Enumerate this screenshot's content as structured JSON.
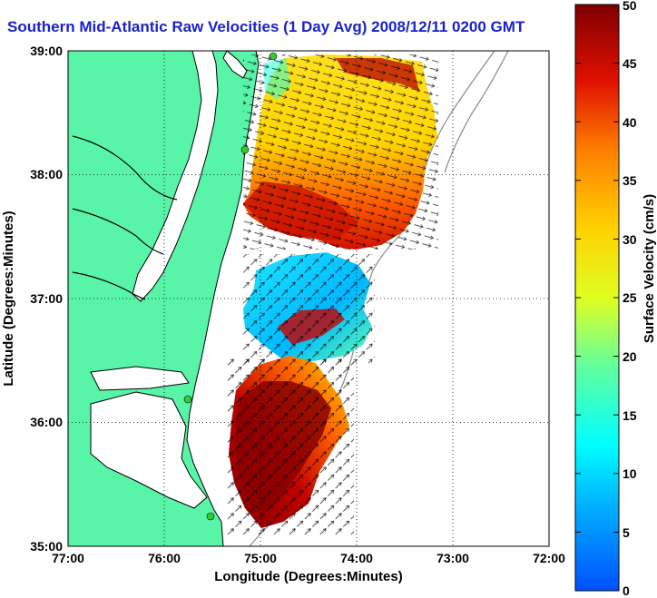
{
  "title": "Southern Mid-Atlantic Raw Velocities (1 Day Avg) 2008/12/11 0200 GMT",
  "xlabel": "Longitude (Degrees:Minutes)",
  "ylabel": "Latitude (Degrees:Minutes)",
  "colorbar_label": "Surface Velocity (cm/s)",
  "xticks": [
    "77:00",
    "76:00",
    "75:00",
    "74:00",
    "73:00",
    "72:00"
  ],
  "yticks": [
    "39:00",
    "38:00",
    "37:00",
    "36:00",
    "35:00"
  ],
  "cticks": [
    "50",
    "45",
    "40",
    "35",
    "30",
    "25",
    "20",
    "15",
    "10",
    "5",
    "0"
  ],
  "colors": {
    "land": "#58f5a8",
    "title": "#1a23c8",
    "coastline": "#000000",
    "bathymetry": "#888888",
    "station": "#33cc33"
  },
  "chart_data": {
    "type": "heatmap",
    "title": "Southern Mid-Atlantic Raw Velocities (1 Day Avg) 2008/12/11 0200 GMT",
    "xlabel": "Longitude (Degrees:Minutes)",
    "ylabel": "Latitude (Degrees:Minutes)",
    "xlim": [
      -77,
      -72
    ],
    "ylim": [
      35,
      39
    ],
    "colorbar": {
      "label": "Surface Velocity (cm/s)",
      "range": [
        0,
        50
      ],
      "ticks": [
        0,
        5,
        10,
        15,
        20,
        25,
        30,
        35,
        40,
        45,
        50
      ]
    },
    "grid": true
  }
}
